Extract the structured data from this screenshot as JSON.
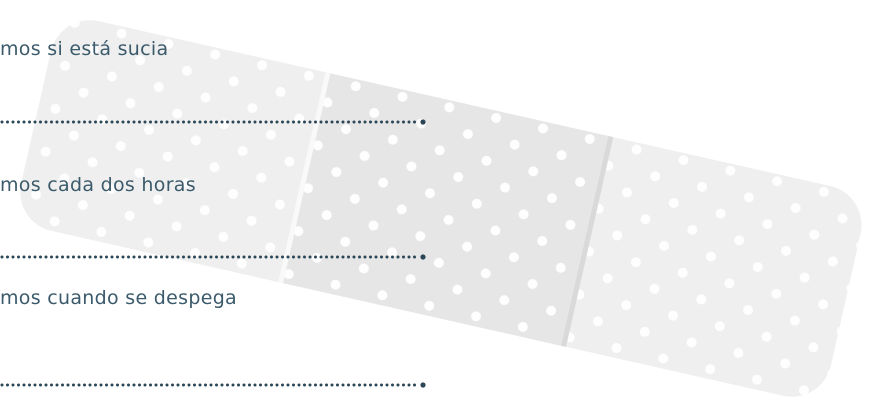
{
  "items": [
    {
      "text": "mos si está sucia"
    },
    {
      "text": "mos cada dos horas"
    },
    {
      "text": "mos cuando se despega"
    }
  ]
}
